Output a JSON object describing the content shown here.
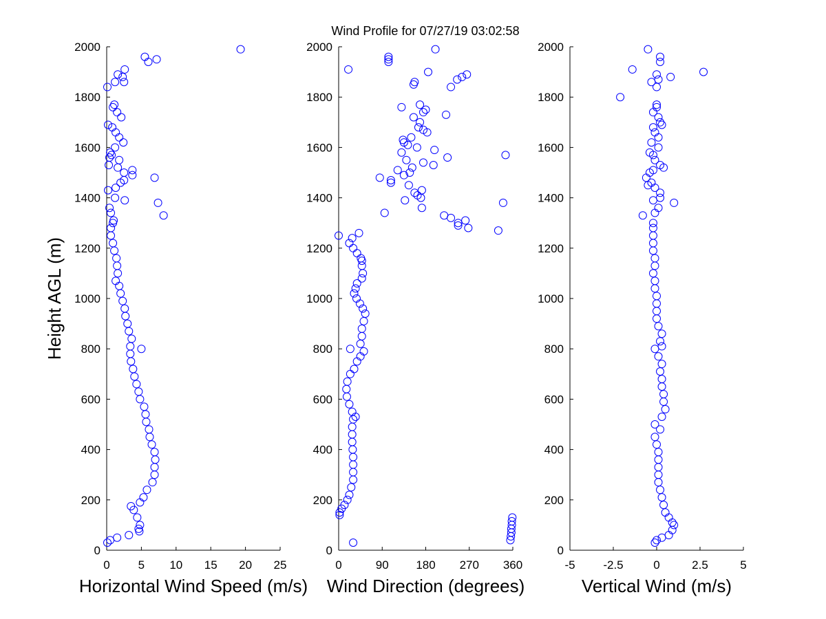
{
  "chart_data": {
    "type": "scatter",
    "title": "Wind Profile for  07/27/19 03:02:58",
    "ylabel": "Height AGL (m)",
    "marker_color": "#0000ff",
    "panels": [
      {
        "xlabel": "Horizontal Wind Speed (m/s)",
        "xlim": [
          0,
          25
        ],
        "ylim": [
          0,
          2000
        ],
        "xticks": [
          "0",
          "5",
          "10",
          "15",
          "20",
          "25"
        ],
        "xtick_values": [
          0,
          5,
          10,
          15,
          20,
          25
        ],
        "yticks": [
          "0",
          "200",
          "400",
          "600",
          "800",
          "1000",
          "1200",
          "1400",
          "1600",
          "1800",
          "2000"
        ],
        "points": [
          [
            0.1,
            30
          ],
          [
            0.5,
            40
          ],
          [
            1.5,
            50
          ],
          [
            3.2,
            60
          ],
          [
            4.7,
            75
          ],
          [
            4.6,
            85
          ],
          [
            4.8,
            100
          ],
          [
            4.4,
            130
          ],
          [
            3.9,
            160
          ],
          [
            3.5,
            175
          ],
          [
            4.8,
            190
          ],
          [
            5.3,
            210
          ],
          [
            5.8,
            240
          ],
          [
            6.6,
            270
          ],
          [
            6.9,
            300
          ],
          [
            6.9,
            330
          ],
          [
            7.0,
            360
          ],
          [
            6.9,
            390
          ],
          [
            6.5,
            420
          ],
          [
            6.2,
            450
          ],
          [
            6.1,
            480
          ],
          [
            5.7,
            510
          ],
          [
            5.6,
            540
          ],
          [
            5.4,
            570
          ],
          [
            4.8,
            600
          ],
          [
            4.6,
            630
          ],
          [
            4.3,
            660
          ],
          [
            4.0,
            690
          ],
          [
            3.8,
            720
          ],
          [
            3.5,
            750
          ],
          [
            3.4,
            780
          ],
          [
            5.0,
            800
          ],
          [
            3.4,
            810
          ],
          [
            3.6,
            840
          ],
          [
            3.2,
            870
          ],
          [
            3.0,
            900
          ],
          [
            2.7,
            930
          ],
          [
            2.6,
            960
          ],
          [
            2.3,
            990
          ],
          [
            2.0,
            1020
          ],
          [
            1.8,
            1050
          ],
          [
            1.3,
            1070
          ],
          [
            1.6,
            1100
          ],
          [
            1.5,
            1130
          ],
          [
            1.4,
            1160
          ],
          [
            1.1,
            1190
          ],
          [
            0.9,
            1220
          ],
          [
            0.6,
            1250
          ],
          [
            0.6,
            1280
          ],
          [
            0.9,
            1300
          ],
          [
            1.0,
            1310
          ],
          [
            8.2,
            1330
          ],
          [
            0.6,
            1340
          ],
          [
            0.4,
            1360
          ],
          [
            7.4,
            1380
          ],
          [
            2.6,
            1390
          ],
          [
            1.2,
            1400
          ],
          [
            0.2,
            1430
          ],
          [
            1.3,
            1440
          ],
          [
            2.0,
            1460
          ],
          [
            2.5,
            1470
          ],
          [
            6.9,
            1480
          ],
          [
            3.7,
            1490
          ],
          [
            2.5,
            1500
          ],
          [
            3.7,
            1510
          ],
          [
            1.6,
            1520
          ],
          [
            0.3,
            1530
          ],
          [
            1.8,
            1550
          ],
          [
            0.4,
            1560
          ],
          [
            0.7,
            1570
          ],
          [
            0.5,
            1580
          ],
          [
            1.2,
            1600
          ],
          [
            2.4,
            1620
          ],
          [
            1.8,
            1640
          ],
          [
            1.3,
            1660
          ],
          [
            0.8,
            1680
          ],
          [
            0.2,
            1690
          ],
          [
            2.1,
            1720
          ],
          [
            1.5,
            1740
          ],
          [
            0.9,
            1760
          ],
          [
            1.1,
            1770
          ],
          [
            0.1,
            1840
          ],
          [
            1.2,
            1860
          ],
          [
            2.5,
            1860
          ],
          [
            2.3,
            1880
          ],
          [
            1.6,
            1890
          ],
          [
            2.6,
            1910
          ],
          [
            6.0,
            1940
          ],
          [
            7.2,
            1950
          ],
          [
            5.5,
            1960
          ],
          [
            19.3,
            1990
          ]
        ]
      },
      {
        "xlabel": "Wind Direction (degrees)",
        "xlim": [
          0,
          360
        ],
        "ylim": [
          0,
          2000
        ],
        "xticks": [
          "0",
          "90",
          "180",
          "270",
          "360"
        ],
        "xtick_values": [
          0,
          90,
          180,
          270,
          360
        ],
        "yticks": [
          "0",
          "200",
          "400",
          "600",
          "800",
          "1000",
          "1200",
          "1400",
          "1600",
          "1800",
          "2000"
        ],
        "points": [
          [
            30,
            30
          ],
          [
            355,
            40
          ],
          [
            356,
            55
          ],
          [
            357,
            70
          ],
          [
            357,
            85
          ],
          [
            358,
            100
          ],
          [
            358,
            115
          ],
          [
            359,
            130
          ],
          [
            2,
            140
          ],
          [
            2,
            150
          ],
          [
            6,
            165
          ],
          [
            12,
            180
          ],
          [
            18,
            200
          ],
          [
            22,
            220
          ],
          [
            26,
            250
          ],
          [
            30,
            280
          ],
          [
            30,
            310
          ],
          [
            30,
            340
          ],
          [
            30,
            370
          ],
          [
            29,
            400
          ],
          [
            28,
            430
          ],
          [
            28,
            460
          ],
          [
            28,
            490
          ],
          [
            30,
            520
          ],
          [
            35,
            530
          ],
          [
            28,
            550
          ],
          [
            22,
            580
          ],
          [
            17,
            610
          ],
          [
            16,
            640
          ],
          [
            18,
            670
          ],
          [
            24,
            700
          ],
          [
            32,
            720
          ],
          [
            38,
            750
          ],
          [
            45,
            770
          ],
          [
            52,
            790
          ],
          [
            24,
            800
          ],
          [
            45,
            820
          ],
          [
            48,
            850
          ],
          [
            48,
            880
          ],
          [
            52,
            910
          ],
          [
            55,
            940
          ],
          [
            50,
            960
          ],
          [
            44,
            980
          ],
          [
            37,
            1000
          ],
          [
            32,
            1020
          ],
          [
            35,
            1040
          ],
          [
            38,
            1060
          ],
          [
            48,
            1080
          ],
          [
            50,
            1100
          ],
          [
            48,
            1130
          ],
          [
            48,
            1150
          ],
          [
            46,
            1160
          ],
          [
            38,
            1180
          ],
          [
            30,
            1200
          ],
          [
            22,
            1220
          ],
          [
            28,
            1240
          ],
          [
            0,
            1250
          ],
          [
            42,
            1260
          ],
          [
            330,
            1270
          ],
          [
            268,
            1280
          ],
          [
            247,
            1290
          ],
          [
            247,
            1300
          ],
          [
            262,
            1310
          ],
          [
            232,
            1320
          ],
          [
            218,
            1330
          ],
          [
            95,
            1340
          ],
          [
            172,
            1360
          ],
          [
            340,
            1380
          ],
          [
            137,
            1390
          ],
          [
            170,
            1400
          ],
          [
            163,
            1410
          ],
          [
            157,
            1420
          ],
          [
            172,
            1430
          ],
          [
            145,
            1450
          ],
          [
            108,
            1460
          ],
          [
            108,
            1470
          ],
          [
            85,
            1480
          ],
          [
            135,
            1490
          ],
          [
            147,
            1500
          ],
          [
            122,
            1510
          ],
          [
            152,
            1520
          ],
          [
            196,
            1530
          ],
          [
            175,
            1540
          ],
          [
            140,
            1550
          ],
          [
            225,
            1560
          ],
          [
            345,
            1570
          ],
          [
            130,
            1580
          ],
          [
            198,
            1590
          ],
          [
            162,
            1600
          ],
          [
            143,
            1610
          ],
          [
            135,
            1620
          ],
          [
            133,
            1630
          ],
          [
            150,
            1640
          ],
          [
            183,
            1660
          ],
          [
            175,
            1670
          ],
          [
            165,
            1680
          ],
          [
            168,
            1700
          ],
          [
            155,
            1720
          ],
          [
            222,
            1730
          ],
          [
            175,
            1740
          ],
          [
            180,
            1750
          ],
          [
            130,
            1760
          ],
          [
            168,
            1770
          ],
          [
            232,
            1840
          ],
          [
            155,
            1850
          ],
          [
            157,
            1860
          ],
          [
            245,
            1870
          ],
          [
            255,
            1880
          ],
          [
            265,
            1890
          ],
          [
            185,
            1900
          ],
          [
            20,
            1910
          ],
          [
            103,
            1940
          ],
          [
            103,
            1950
          ],
          [
            103,
            1960
          ],
          [
            200,
            1990
          ]
        ]
      },
      {
        "xlabel": "Vertical Wind (m/s)",
        "xlim": [
          -5,
          5
        ],
        "ylim": [
          0,
          2000
        ],
        "xticks": [
          "-5",
          "-2.5",
          "0",
          "2.5",
          "5"
        ],
        "xtick_values": [
          -5,
          -2.5,
          0,
          2.5,
          5
        ],
        "yticks": [
          "0",
          "200",
          "400",
          "600",
          "800",
          "1000",
          "1200",
          "1400",
          "1600",
          "1800",
          "2000"
        ],
        "points": [
          [
            -0.1,
            30
          ],
          [
            0.0,
            40
          ],
          [
            0.3,
            50
          ],
          [
            0.7,
            60
          ],
          [
            0.9,
            80
          ],
          [
            1.0,
            100
          ],
          [
            0.9,
            110
          ],
          [
            0.7,
            130
          ],
          [
            0.5,
            150
          ],
          [
            0.4,
            180
          ],
          [
            0.3,
            210
          ],
          [
            0.2,
            240
          ],
          [
            0.1,
            270
          ],
          [
            0.1,
            300
          ],
          [
            0.1,
            330
          ],
          [
            0.1,
            360
          ],
          [
            0.1,
            390
          ],
          [
            0.0,
            420
          ],
          [
            -0.1,
            450
          ],
          [
            0.2,
            480
          ],
          [
            -0.1,
            500
          ],
          [
            0.3,
            530
          ],
          [
            0.5,
            560
          ],
          [
            0.4,
            590
          ],
          [
            0.4,
            620
          ],
          [
            0.3,
            650
          ],
          [
            0.3,
            680
          ],
          [
            0.2,
            710
          ],
          [
            0.3,
            740
          ],
          [
            0.1,
            770
          ],
          [
            -0.1,
            800
          ],
          [
            0.3,
            810
          ],
          [
            0.2,
            830
          ],
          [
            0.3,
            860
          ],
          [
            0.1,
            890
          ],
          [
            0.0,
            920
          ],
          [
            0.0,
            950
          ],
          [
            0.0,
            980
          ],
          [
            0.0,
            1010
          ],
          [
            -0.1,
            1040
          ],
          [
            -0.1,
            1070
          ],
          [
            -0.2,
            1100
          ],
          [
            -0.1,
            1130
          ],
          [
            -0.1,
            1160
          ],
          [
            -0.2,
            1190
          ],
          [
            -0.2,
            1220
          ],
          [
            -0.2,
            1250
          ],
          [
            -0.2,
            1280
          ],
          [
            -0.2,
            1300
          ],
          [
            -0.8,
            1330
          ],
          [
            -0.1,
            1340
          ],
          [
            0.1,
            1360
          ],
          [
            1.0,
            1380
          ],
          [
            -0.2,
            1390
          ],
          [
            0.2,
            1400
          ],
          [
            0.2,
            1420
          ],
          [
            -0.1,
            1440
          ],
          [
            -0.5,
            1450
          ],
          [
            -0.3,
            1460
          ],
          [
            -0.6,
            1480
          ],
          [
            -0.4,
            1500
          ],
          [
            -0.2,
            1510
          ],
          [
            0.4,
            1520
          ],
          [
            0.2,
            1530
          ],
          [
            -0.1,
            1550
          ],
          [
            -0.2,
            1570
          ],
          [
            -0.4,
            1580
          ],
          [
            0.1,
            1600
          ],
          [
            -0.3,
            1620
          ],
          [
            0.1,
            1640
          ],
          [
            -0.1,
            1660
          ],
          [
            -0.2,
            1680
          ],
          [
            0.3,
            1690
          ],
          [
            0.2,
            1700
          ],
          [
            0.1,
            1720
          ],
          [
            -0.2,
            1740
          ],
          [
            0.0,
            1760
          ],
          [
            0.0,
            1770
          ],
          [
            -2.1,
            1800
          ],
          [
            0.0,
            1840
          ],
          [
            -0.3,
            1860
          ],
          [
            0.1,
            1870
          ],
          [
            0.8,
            1880
          ],
          [
            0.0,
            1890
          ],
          [
            2.7,
            1900
          ],
          [
            -1.4,
            1910
          ],
          [
            0.2,
            1940
          ],
          [
            0.2,
            1960
          ],
          [
            -0.5,
            1990
          ]
        ]
      }
    ]
  }
}
